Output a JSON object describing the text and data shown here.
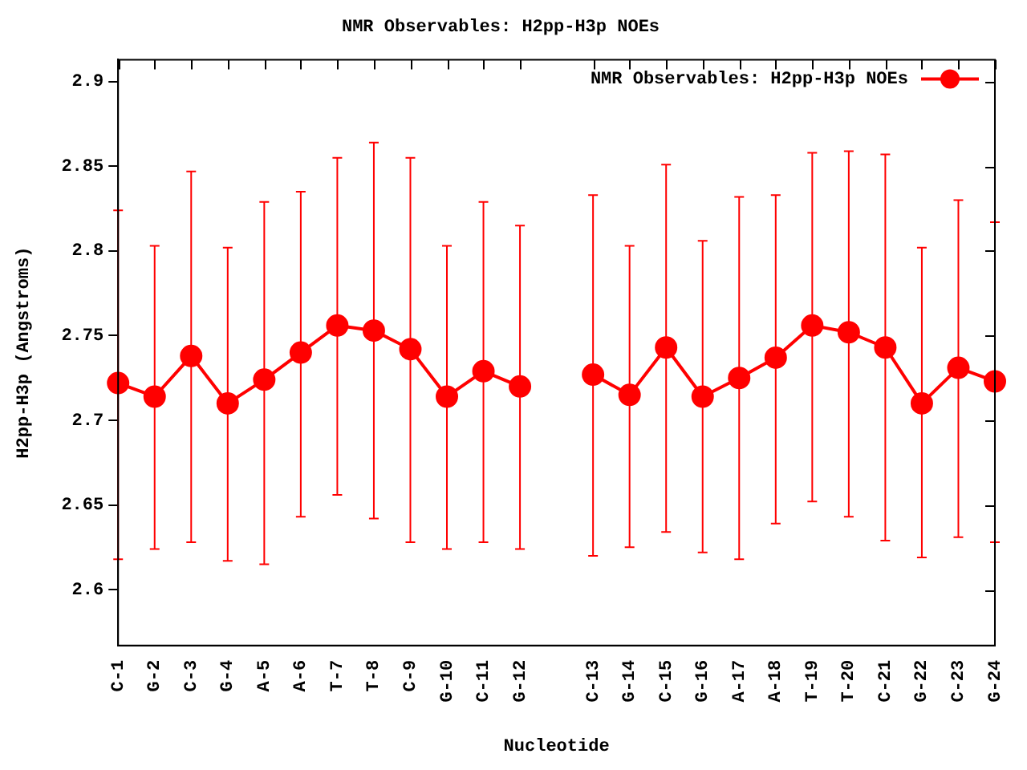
{
  "chart_data": {
    "type": "line",
    "title": "NMR Observables: H2pp-H3p NOEs",
    "xlabel": "Nucleotide",
    "ylabel": "H2pp-H3p (Angstroms)",
    "categories": [
      "C-1",
      "G-2",
      "C-3",
      "G-4",
      "A-5",
      "A-6",
      "T-7",
      "T-8",
      "C-9",
      "G-10",
      "C-11",
      "G-12",
      null,
      "C-13",
      "G-14",
      "C-15",
      "G-16",
      "A-17",
      "A-18",
      "T-19",
      "T-20",
      "C-21",
      "G-22",
      "C-23",
      "G-24"
    ],
    "series": [
      {
        "name": "NMR Observables: H2pp-H3p NOEs",
        "color": "#ff0000",
        "values": [
          2.722,
          2.714,
          2.738,
          2.71,
          2.724,
          2.74,
          2.756,
          2.753,
          2.742,
          2.714,
          2.729,
          2.72,
          null,
          2.727,
          2.715,
          2.743,
          2.714,
          2.725,
          2.737,
          2.756,
          2.752,
          2.743,
          2.71,
          2.731,
          2.723
        ],
        "errors": [
          [
            2.618,
            2.824
          ],
          [
            2.624,
            2.803
          ],
          [
            2.628,
            2.847
          ],
          [
            2.617,
            2.802
          ],
          [
            2.615,
            2.829
          ],
          [
            2.643,
            2.835
          ],
          [
            2.656,
            2.855
          ],
          [
            2.642,
            2.864
          ],
          [
            2.628,
            2.855
          ],
          [
            2.624,
            2.803
          ],
          [
            2.628,
            2.829
          ],
          [
            2.624,
            2.815
          ],
          null,
          [
            2.62,
            2.833
          ],
          [
            2.625,
            2.803
          ],
          [
            2.634,
            2.851
          ],
          [
            2.622,
            2.806
          ],
          [
            2.618,
            2.832
          ],
          [
            2.639,
            2.833
          ],
          [
            2.652,
            2.858
          ],
          [
            2.643,
            2.859
          ],
          [
            2.629,
            2.857
          ],
          [
            2.619,
            2.802
          ],
          [
            2.631,
            2.83
          ],
          [
            2.628,
            2.817
          ]
        ]
      }
    ],
    "ylim": [
      2.567,
      2.913
    ],
    "yticks": [
      2.6,
      2.65,
      2.7,
      2.75,
      2.8,
      2.85,
      2.9
    ],
    "grid": false,
    "legend": "top right",
    "marker": "circle",
    "line_style": "solid"
  }
}
